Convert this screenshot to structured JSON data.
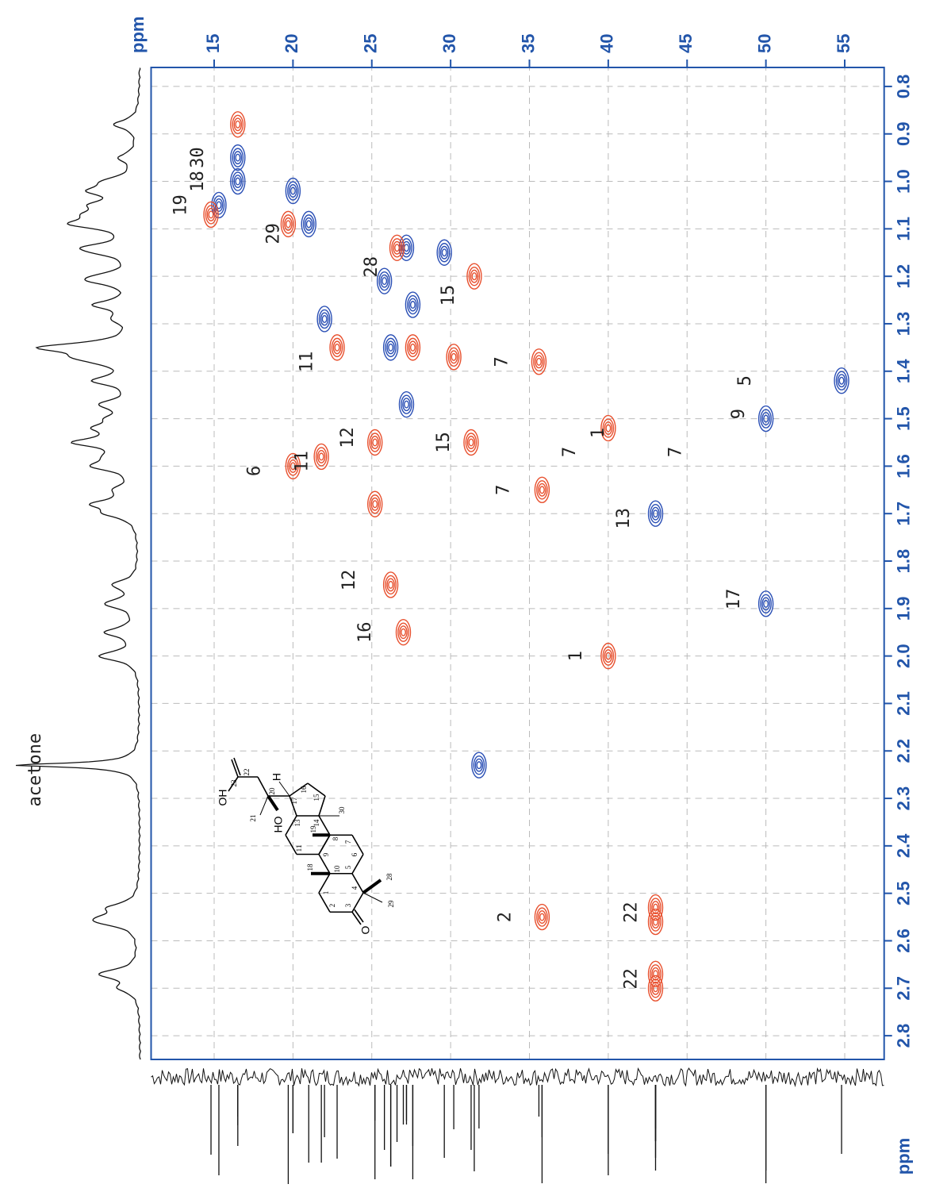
{
  "chart_data": {
    "type": "contour",
    "xlabel": "ppm",
    "ylabel": "ppm",
    "xlim": [
      2.85,
      0.76
    ],
    "ylim": [
      11,
      57.5
    ],
    "xticks": [
      0.8,
      0.9,
      {
        "value": 1,
        "label": "1.0"
      },
      1.1,
      1.2,
      1.3,
      1.4,
      1.5,
      1.6,
      1.7,
      1.8,
      1.9,
      {
        "value": 2,
        "label": "2.0"
      },
      2.1,
      2.2,
      2.3,
      2.4,
      2.5,
      2.6,
      2.7,
      2.8
    ],
    "yticks": [
      15,
      20,
      25,
      30,
      35,
      40,
      45,
      50,
      55
    ],
    "grid": true,
    "series": [
      {
        "color": "#2a4fb5",
        "x": [
          0.95,
          1.0,
          1.05,
          1.02,
          1.09,
          1.14,
          1.21,
          1.26,
          1.29,
          1.35,
          1.47,
          1.42,
          1.5,
          1.7,
          1.89,
          2.23,
          1.15
        ],
        "values": [
          16.5,
          16.5,
          15.3,
          20.0,
          21.0,
          27.2,
          25.8,
          27.6,
          22.0,
          26.2,
          27.2,
          54.8,
          50.0,
          43.0,
          50.0,
          31.8,
          29.6
        ]
      },
      {
        "color": "#e8502e",
        "x": [
          0.88,
          1.07,
          1.09,
          1.14,
          1.2,
          1.37,
          1.35,
          1.38,
          1.35,
          1.52,
          1.6,
          1.58,
          1.55,
          1.55,
          1.68,
          1.65,
          1.85,
          1.95,
          2.0,
          2.55,
          2.53,
          2.56,
          2.67,
          2.7
        ],
        "values": [
          16.5,
          14.8,
          19.7,
          26.6,
          31.5,
          30.2,
          22.8,
          35.6,
          27.6,
          40.0,
          20.0,
          21.8,
          25.2,
          31.3,
          25.2,
          35.8,
          26.2,
          27.0,
          40.0,
          35.8,
          43.0,
          43.0,
          43.0,
          43.0
        ]
      }
    ],
    "annotations": [
      {
        "text": "30",
        "x": 0.95,
        "y": 14.0
      },
      {
        "text": "18",
        "x": 1.0,
        "y": 14.0
      },
      {
        "text": "19",
        "x": 1.05,
        "y": 12.9
      },
      {
        "text": "29",
        "x": 1.11,
        "y": 18.8
      },
      {
        "text": "28",
        "x": 1.18,
        "y": 25.0
      },
      {
        "text": "15",
        "x": 1.24,
        "y": 29.9
      },
      {
        "text": "11",
        "x": 1.38,
        "y": 20.9
      },
      {
        "text": "7",
        "x": 1.38,
        "y": 33.3
      },
      {
        "text": "5",
        "x": 1.42,
        "y": 48.7
      },
      {
        "text": "9",
        "x": 1.49,
        "y": 48.3
      },
      {
        "text": "1",
        "x": 1.53,
        "y": 39.4
      },
      {
        "text": "7",
        "x": 1.57,
        "y": 37.6
      },
      {
        "text": "7",
        "x": 1.57,
        "y": 44.3
      },
      {
        "text": "12",
        "x": 1.54,
        "y": 23.5
      },
      {
        "text": "15",
        "x": 1.55,
        "y": 29.6
      },
      {
        "text": "11",
        "x": 1.59,
        "y": 20.6
      },
      {
        "text": "6",
        "x": 1.61,
        "y": 17.6
      },
      {
        "text": "7",
        "x": 1.65,
        "y": 33.4
      },
      {
        "text": "13",
        "x": 1.71,
        "y": 41.0
      },
      {
        "text": "12",
        "x": 1.84,
        "y": 23.6
      },
      {
        "text": "17",
        "x": 1.88,
        "y": 48.0
      },
      {
        "text": "16",
        "x": 1.95,
        "y": 24.6
      },
      {
        "text": "1",
        "x": 2.0,
        "y": 38.0
      },
      {
        "text": "2",
        "x": 2.55,
        "y": 33.5
      },
      {
        "text": "22",
        "x": 2.54,
        "y": 41.5
      },
      {
        "text": "22",
        "x": 2.68,
        "y": 41.5
      }
    ],
    "spectrum_annotation": {
      "text": "acetone",
      "x": 2.23
    }
  },
  "structure": {
    "labels": [
      "O",
      "HO",
      "OH",
      "H",
      "1",
      "2",
      "3",
      "4",
      "5",
      "6",
      "7",
      "8",
      "9",
      "10",
      "11",
      "13",
      "14",
      "15",
      "16",
      "17",
      "18",
      "19",
      "20",
      "21",
      "22",
      "23",
      "28",
      "29",
      "30"
    ]
  }
}
